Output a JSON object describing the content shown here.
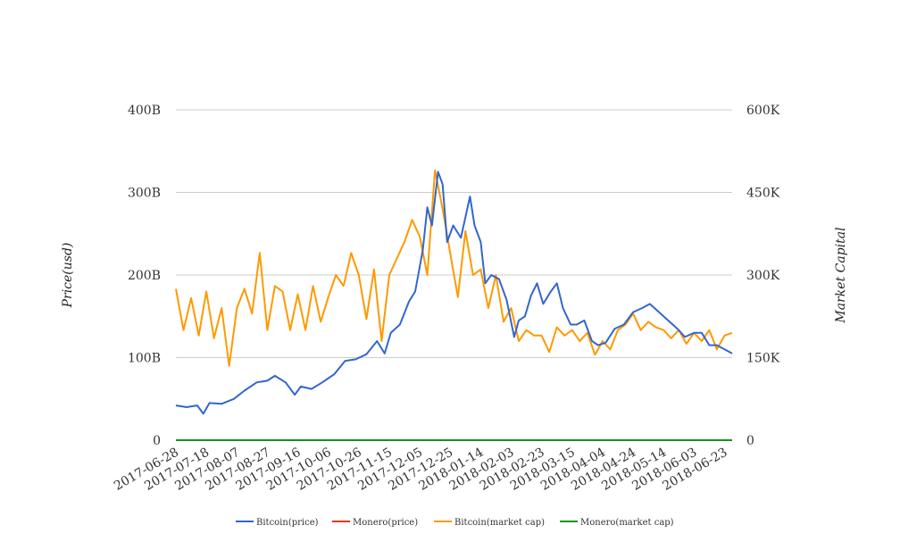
{
  "chart_data": {
    "type": "line",
    "title": "",
    "ylabel": "Price(usd)",
    "y2label": "Market Capital",
    "ylim": [
      0,
      400000000000
    ],
    "yticks": [
      0,
      100000000000,
      200000000000,
      300000000000,
      400000000000
    ],
    "ytick_labels": [
      "0",
      "100B",
      "200B",
      "300B",
      "400B"
    ],
    "y2lim": [
      0,
      600000
    ],
    "y2ticks": [
      0,
      150000,
      300000,
      450000,
      600000
    ],
    "y2tick_labels": [
      "0",
      "150K",
      "300K",
      "450K",
      "600K"
    ],
    "xlim": [
      "2017-06-28",
      "2018-06-28"
    ],
    "xticks": [
      "2017-06-28",
      "2017-07-18",
      "2017-08-07",
      "2017-08-27",
      "2017-09-16",
      "2017-10-06",
      "2017-10-26",
      "2017-11-15",
      "2017-12-05",
      "2017-12-25",
      "2018-01-14",
      "2018-02-03",
      "2018-02-23",
      "2018-03-15",
      "2018-04-04",
      "2018-04-24",
      "2018-05-14",
      "2018-06-03",
      "2018-06-23"
    ],
    "grid": true,
    "legend_position": "bottom",
    "series": [
      {
        "name": "Bitcoin(price)",
        "axis": "left",
        "color": "#3366cc",
        "x": [
          "2017-06-28",
          "2017-07-05",
          "2017-07-12",
          "2017-07-16",
          "2017-07-20",
          "2017-07-28",
          "2017-08-05",
          "2017-08-12",
          "2017-08-20",
          "2017-08-27",
          "2017-09-01",
          "2017-09-08",
          "2017-09-14",
          "2017-09-18",
          "2017-09-25",
          "2017-10-02",
          "2017-10-10",
          "2017-10-17",
          "2017-10-24",
          "2017-10-31",
          "2017-11-07",
          "2017-11-12",
          "2017-11-16",
          "2017-11-22",
          "2017-11-28",
          "2017-12-02",
          "2017-12-07",
          "2017-12-10",
          "2017-12-13",
          "2017-12-17",
          "2017-12-20",
          "2017-12-23",
          "2017-12-27",
          "2018-01-01",
          "2018-01-04",
          "2018-01-07",
          "2018-01-10",
          "2018-01-14",
          "2018-01-17",
          "2018-01-21",
          "2018-01-26",
          "2018-01-31",
          "2018-02-05",
          "2018-02-08",
          "2018-02-12",
          "2018-02-16",
          "2018-02-20",
          "2018-02-24",
          "2018-03-01",
          "2018-03-05",
          "2018-03-09",
          "2018-03-14",
          "2018-03-18",
          "2018-03-23",
          "2018-03-28",
          "2018-04-01",
          "2018-04-06",
          "2018-04-12",
          "2018-04-18",
          "2018-04-24",
          "2018-04-30",
          "2018-05-05",
          "2018-05-11",
          "2018-05-17",
          "2018-05-23",
          "2018-05-28",
          "2018-06-03",
          "2018-06-08",
          "2018-06-13",
          "2018-06-18",
          "2018-06-23",
          "2018-06-28"
        ],
        "y": [
          42000000000,
          40000000000,
          42000000000,
          32000000000,
          45000000000,
          44000000000,
          50000000000,
          60000000000,
          70000000000,
          72000000000,
          78000000000,
          70000000000,
          55000000000,
          65000000000,
          62000000000,
          70000000000,
          80000000000,
          96000000000,
          98000000000,
          104000000000,
          120000000000,
          105000000000,
          130000000000,
          140000000000,
          168000000000,
          180000000000,
          230000000000,
          282000000000,
          260000000000,
          325000000000,
          310000000000,
          240000000000,
          260000000000,
          245000000000,
          270000000000,
          295000000000,
          260000000000,
          240000000000,
          190000000000,
          200000000000,
          195000000000,
          170000000000,
          125000000000,
          145000000000,
          150000000000,
          175000000000,
          190000000000,
          165000000000,
          180000000000,
          190000000000,
          160000000000,
          140000000000,
          140000000000,
          145000000000,
          120000000000,
          115000000000,
          118000000000,
          135000000000,
          140000000000,
          155000000000,
          160000000000,
          165000000000,
          155000000000,
          145000000000,
          135000000000,
          125000000000,
          130000000000,
          130000000000,
          115000000000,
          115000000000,
          110000000000,
          105000000000
        ]
      },
      {
        "name": "Monero(price)",
        "axis": "left",
        "color": "#dc3912",
        "x": [
          "2017-06-28",
          "2018-06-28"
        ],
        "y": [
          0,
          0
        ]
      },
      {
        "name": "Bitcoin(market cap)",
        "axis": "right",
        "color": "#ff9900",
        "x": [
          "2017-06-28",
          "2017-07-03",
          "2017-07-08",
          "2017-07-13",
          "2017-07-18",
          "2017-07-23",
          "2017-07-28",
          "2017-08-02",
          "2017-08-07",
          "2017-08-12",
          "2017-08-17",
          "2017-08-22",
          "2017-08-27",
          "2017-09-01",
          "2017-09-06",
          "2017-09-11",
          "2017-09-16",
          "2017-09-21",
          "2017-09-26",
          "2017-10-01",
          "2017-10-06",
          "2017-10-11",
          "2017-10-16",
          "2017-10-21",
          "2017-10-26",
          "2017-10-31",
          "2017-11-05",
          "2017-11-10",
          "2017-11-15",
          "2017-11-20",
          "2017-11-25",
          "2017-11-30",
          "2017-12-05",
          "2017-12-10",
          "2017-12-15",
          "2017-12-20",
          "2017-12-25",
          "2017-12-30",
          "2018-01-04",
          "2018-01-09",
          "2018-01-14",
          "2018-01-19",
          "2018-01-24",
          "2018-01-29",
          "2018-02-03",
          "2018-02-08",
          "2018-02-13",
          "2018-02-18",
          "2018-02-23",
          "2018-02-28",
          "2018-03-05",
          "2018-03-10",
          "2018-03-15",
          "2018-03-20",
          "2018-03-25",
          "2018-03-30",
          "2018-04-04",
          "2018-04-09",
          "2018-04-14",
          "2018-04-19",
          "2018-04-24",
          "2018-04-29",
          "2018-05-04",
          "2018-05-09",
          "2018-05-14",
          "2018-05-19",
          "2018-05-24",
          "2018-05-29",
          "2018-06-03",
          "2018-06-08",
          "2018-06-13",
          "2018-06-18",
          "2018-06-23",
          "2018-06-28"
        ],
        "y": [
          275000,
          200000,
          258000,
          190000,
          270000,
          185000,
          240000,
          135000,
          240000,
          275000,
          230000,
          340000,
          200000,
          280000,
          270000,
          200000,
          265000,
          200000,
          280000,
          215000,
          260000,
          300000,
          280000,
          340000,
          300000,
          220000,
          310000,
          180000,
          300000,
          330000,
          360000,
          400000,
          370000,
          300000,
          490000,
          420000,
          340000,
          260000,
          380000,
          300000,
          310000,
          240000,
          300000,
          215000,
          240000,
          180000,
          200000,
          190000,
          190000,
          160000,
          205000,
          190000,
          200000,
          180000,
          195000,
          155000,
          180000,
          165000,
          200000,
          210000,
          230000,
          200000,
          215000,
          205000,
          200000,
          185000,
          200000,
          175000,
          195000,
          180000,
          200000,
          165000,
          190000,
          195000
        ]
      },
      {
        "name": "Monero(market cap)",
        "axis": "right",
        "color": "#109618",
        "x": [
          "2017-06-28",
          "2018-06-28"
        ],
        "y": [
          0,
          0
        ]
      }
    ]
  }
}
